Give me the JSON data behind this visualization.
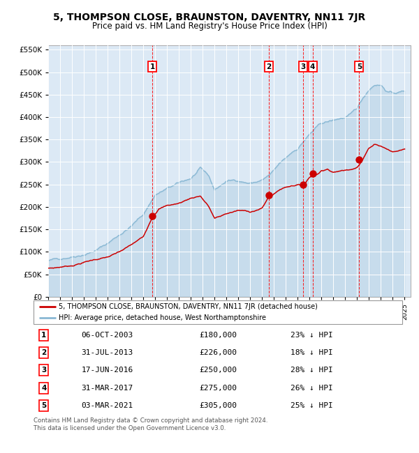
{
  "title": "5, THOMPSON CLOSE, BRAUNSTON, DAVENTRY, NN11 7JR",
  "subtitle": "Price paid vs. HM Land Registry's House Price Index (HPI)",
  "red_line_label": "5, THOMPSON CLOSE, BRAUNSTON, DAVENTRY, NN11 7JR (detached house)",
  "blue_line_label": "HPI: Average price, detached house, West Northamptonshire",
  "footer": "Contains HM Land Registry data © Crown copyright and database right 2024.\nThis data is licensed under the Open Government Licence v3.0.",
  "transactions": [
    {
      "num": 1,
      "date": "06-OCT-2003",
      "price": 180000,
      "pct": "23% ↓ HPI"
    },
    {
      "num": 2,
      "date": "31-JUL-2013",
      "price": 226000,
      "pct": "18% ↓ HPI"
    },
    {
      "num": 3,
      "date": "17-JUN-2016",
      "price": 250000,
      "pct": "28% ↓ HPI"
    },
    {
      "num": 4,
      "date": "31-MAR-2017",
      "price": 275000,
      "pct": "26% ↓ HPI"
    },
    {
      "num": 5,
      "date": "03-MAR-2021",
      "price": 305000,
      "pct": "25% ↓ HPI"
    }
  ],
  "transaction_x": [
    2003.76,
    2013.58,
    2016.46,
    2017.25,
    2021.17
  ],
  "transaction_y": [
    180000,
    226000,
    250000,
    275000,
    305000
  ],
  "plot_bg_color": "#dce9f5",
  "red_color": "#cc0000",
  "blue_color": "#89b8d4",
  "grid_color": "white",
  "ylim": [
    0,
    560000
  ],
  "yticks": [
    0,
    50000,
    100000,
    150000,
    200000,
    250000,
    300000,
    350000,
    400000,
    450000,
    500000,
    550000
  ],
  "xlim_start": 1995.0,
  "xlim_end": 2025.5,
  "hpi_anchors": [
    [
      1995.0,
      80000
    ],
    [
      1996.0,
      84000
    ],
    [
      1997.0,
      92000
    ],
    [
      1998.0,
      100000
    ],
    [
      1999.0,
      110000
    ],
    [
      2000.0,
      125000
    ],
    [
      2001.0,
      145000
    ],
    [
      2002.0,
      165000
    ],
    [
      2003.0,
      190000
    ],
    [
      2004.0,
      235000
    ],
    [
      2005.0,
      248000
    ],
    [
      2006.0,
      258000
    ],
    [
      2007.0,
      268000
    ],
    [
      2007.8,
      288000
    ],
    [
      2008.5,
      270000
    ],
    [
      2009.0,
      238000
    ],
    [
      2009.5,
      248000
    ],
    [
      2010.0,
      258000
    ],
    [
      2011.0,
      260000
    ],
    [
      2012.0,
      255000
    ],
    [
      2012.5,
      258000
    ],
    [
      2013.0,
      262000
    ],
    [
      2013.5,
      270000
    ],
    [
      2014.0,
      280000
    ],
    [
      2014.5,
      295000
    ],
    [
      2015.0,
      305000
    ],
    [
      2015.5,
      318000
    ],
    [
      2016.0,
      328000
    ],
    [
      2016.5,
      345000
    ],
    [
      2017.0,
      360000
    ],
    [
      2017.5,
      372000
    ],
    [
      2018.0,
      382000
    ],
    [
      2018.5,
      385000
    ],
    [
      2019.0,
      388000
    ],
    [
      2019.5,
      392000
    ],
    [
      2020.0,
      395000
    ],
    [
      2020.5,
      400000
    ],
    [
      2021.0,
      412000
    ],
    [
      2021.5,
      435000
    ],
    [
      2022.0,
      455000
    ],
    [
      2022.5,
      468000
    ],
    [
      2023.0,
      468000
    ],
    [
      2023.5,
      455000
    ],
    [
      2024.0,
      450000
    ],
    [
      2024.5,
      452000
    ],
    [
      2025.0,
      455000
    ]
  ],
  "red_anchors": [
    [
      1995.0,
      63000
    ],
    [
      1995.5,
      64000
    ],
    [
      1996.0,
      66000
    ],
    [
      1997.0,
      70000
    ],
    [
      1998.0,
      78000
    ],
    [
      1999.0,
      85000
    ],
    [
      2000.0,
      90000
    ],
    [
      2001.0,
      100000
    ],
    [
      2002.0,
      115000
    ],
    [
      2003.0,
      132000
    ],
    [
      2003.76,
      178000
    ],
    [
      2004.3,
      198000
    ],
    [
      2005.0,
      205000
    ],
    [
      2006.0,
      210000
    ],
    [
      2007.0,
      222000
    ],
    [
      2007.8,
      228000
    ],
    [
      2008.5,
      205000
    ],
    [
      2009.0,
      178000
    ],
    [
      2009.5,
      182000
    ],
    [
      2010.0,
      188000
    ],
    [
      2011.0,
      195000
    ],
    [
      2012.0,
      192000
    ],
    [
      2012.5,
      196000
    ],
    [
      2013.0,
      200000
    ],
    [
      2013.58,
      226000
    ],
    [
      2014.0,
      232000
    ],
    [
      2014.5,
      242000
    ],
    [
      2015.0,
      248000
    ],
    [
      2015.5,
      252000
    ],
    [
      2016.0,
      255000
    ],
    [
      2016.46,
      250000
    ],
    [
      2016.8,
      265000
    ],
    [
      2017.0,
      272000
    ],
    [
      2017.25,
      275000
    ],
    [
      2017.8,
      282000
    ],
    [
      2018.0,
      288000
    ],
    [
      2018.5,
      293000
    ],
    [
      2019.0,
      285000
    ],
    [
      2019.5,
      288000
    ],
    [
      2020.0,
      290000
    ],
    [
      2020.5,
      294000
    ],
    [
      2021.0,
      300000
    ],
    [
      2021.17,
      305000
    ],
    [
      2021.5,
      318000
    ],
    [
      2022.0,
      342000
    ],
    [
      2022.5,
      352000
    ],
    [
      2023.0,
      348000
    ],
    [
      2023.5,
      342000
    ],
    [
      2024.0,
      335000
    ],
    [
      2024.5,
      338000
    ],
    [
      2025.0,
      342000
    ]
  ]
}
